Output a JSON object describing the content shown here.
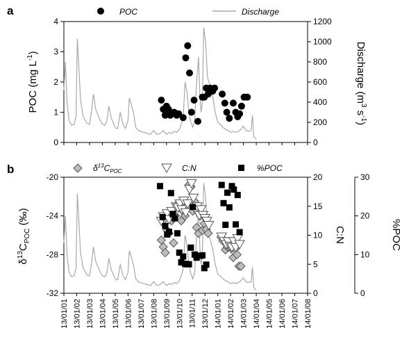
{
  "colors": {
    "discharge": "#a8a8a8",
    "marker_black": "#000000",
    "diamond_fill": "#bdbdbd",
    "triangle_fill": "#ffffff"
  },
  "chart_data": [
    {
      "type": "scatter",
      "panel_label": "a",
      "legend": {
        "poc": "POC",
        "discharge": "Discharge"
      },
      "ylabel_left": "POC (mg L⁻¹)",
      "ylabel_right": "Discharge (m³ s⁻¹)",
      "ylim_left": [
        0,
        4
      ],
      "yticks_left": [
        "0",
        "1",
        "2",
        "3",
        "4"
      ],
      "ylim_right": [
        0,
        1200
      ],
      "yticks_right": [
        "0",
        "200",
        "400",
        "600",
        "800",
        "1000",
        "1200"
      ],
      "xlim": [
        0,
        19
      ],
      "grid": false,
      "series": [
        {
          "name": "POC",
          "marker": "circle",
          "x": [
            7.6,
            7.75,
            7.9,
            8.0,
            8.15,
            8.3,
            8.6,
            8.8,
            8.95,
            9.3,
            9.5,
            9.65,
            9.8,
            9.95,
            10.15,
            10.45,
            10.8,
            10.95,
            11.1,
            11.25,
            11.4,
            11.6,
            11.75,
            12.35,
            12.55,
            12.7,
            12.9,
            13.2,
            13.4,
            13.55,
            13.7,
            13.85,
            14.05,
            14.3
          ],
          "y": [
            1.4,
            1.1,
            0.9,
            1.2,
            1.1,
            0.9,
            1.0,
            0.9,
            0.95,
            0.82,
            2.8,
            3.2,
            2.3,
            1.0,
            1.4,
            0.7,
            1.5,
            1.5,
            1.8,
            1.6,
            1.8,
            1.7,
            1.8,
            1.6,
            1.3,
            1.0,
            0.8,
            1.3,
            1.0,
            0.85,
            0.95,
            1.2,
            1.5,
            1.5
          ]
        },
        {
          "name": "Discharge",
          "axis": "right",
          "x": [
            0,
            0.12,
            0.25,
            0.4,
            0.6,
            0.8,
            0.95,
            1.05,
            1.15,
            1.3,
            1.5,
            1.8,
            2.0,
            2.15,
            2.3,
            2.5,
            2.8,
            3.0,
            3.2,
            3.35,
            3.5,
            3.7,
            3.9,
            4.05,
            4.2,
            4.4,
            4.6,
            4.8,
            5.0,
            5.1,
            5.25,
            5.45,
            5.6,
            5.8,
            6.0,
            6.25,
            6.5,
            6.75,
            7.0,
            7.25,
            7.5,
            7.75,
            8.0,
            8.2,
            8.4,
            8.6,
            8.8,
            9.0,
            9.15,
            9.3,
            9.45,
            9.6,
            9.75,
            9.9,
            10.05,
            10.2,
            10.35,
            10.5,
            10.6,
            10.7,
            10.8,
            10.9,
            11.05,
            11.2,
            11.4,
            11.6,
            11.8,
            12.0,
            12.2,
            12.4,
            12.6,
            12.8,
            13.0,
            13.2,
            13.4,
            13.6,
            13.8,
            14.0,
            14.2,
            14.4,
            14.6,
            14.7,
            14.8,
            15.0
          ],
          "y": [
            520,
            800,
            400,
            220,
            170,
            180,
            260,
            1030,
            800,
            420,
            260,
            190,
            180,
            300,
            480,
            320,
            230,
            180,
            170,
            210,
            360,
            240,
            180,
            140,
            140,
            300,
            180,
            140,
            220,
            440,
            380,
            280,
            150,
            120,
            110,
            100,
            90,
            80,
            120,
            80,
            90,
            120,
            80,
            100,
            90,
            110,
            100,
            130,
            180,
            250,
            600,
            500,
            300,
            200,
            150,
            220,
            600,
            850,
            480,
            300,
            400,
            1140,
            1000,
            650,
            560,
            460,
            300,
            200,
            180,
            150,
            130,
            120,
            100,
            110,
            100,
            110,
            130,
            160,
            120,
            110,
            120,
            270,
            60,
            30
          ]
        }
      ]
    },
    {
      "type": "scatter",
      "panel_label": "b",
      "legend": {
        "d13c": "δ13CPOC",
        "cn": "C:N",
        "pct": "%POC"
      },
      "ylabel_left": "δ13CPOC (‰)",
      "ylabel_right": "C:N",
      "ylabel_right2": "%POC",
      "ylim_left": [
        -32,
        -20
      ],
      "yticks_left": [
        "-32",
        "-28",
        "-24",
        "-20"
      ],
      "ylim_right": [
        0,
        20
      ],
      "yticks_right": [
        "0",
        "5",
        "10",
        "15",
        "20"
      ],
      "ylim_right2": [
        0,
        30
      ],
      "yticks_right2": [
        "0",
        "10",
        "20",
        "30"
      ],
      "x_ticklabels": [
        "13/01/01",
        "13/01/02",
        "13/01/03",
        "13/01/04",
        "13/01/05",
        "13/01/06",
        "13/01/07",
        "13/01/08",
        "13/01/09",
        "13/01/10",
        "13/01/11",
        "13/01/12",
        "14/01/01",
        "14/01/02",
        "14/01/03",
        "14/01/04",
        "14/01/05",
        "14/01/06",
        "14/01/07",
        "14/01/08"
      ],
      "grid": false,
      "series": [
        {
          "name": "δ13CPOC",
          "marker": "diamond",
          "x": [
            7.6,
            7.75,
            7.9,
            8.05,
            8.2,
            8.4,
            8.55,
            8.7,
            8.85,
            9.0,
            9.15,
            9.3,
            9.45,
            9.6,
            9.75,
            9.9,
            10.05,
            10.2,
            10.35,
            10.5,
            10.65,
            10.8,
            10.95,
            11.1,
            11.25,
            12.25,
            12.4,
            12.6,
            12.75,
            12.9,
            13.05,
            13.2,
            13.35,
            13.5,
            13.65,
            13.8
          ],
          "y": [
            -26.5,
            -27.2,
            -27.8,
            -25.5,
            -25.8,
            -24.5,
            -26.8,
            -24.0,
            -22.8,
            -23.0,
            -24.5,
            -23.5,
            -24.0,
            -23.0,
            -20.8,
            -21.0,
            -23.5,
            -22.5,
            -25.2,
            -25.8,
            -24.0,
            -25.5,
            -24.8,
            -25.4,
            -25.8,
            -26.2,
            -26.6,
            -27.5,
            -27.2,
            -26.8,
            -27.4,
            -28.3,
            -27.4,
            -28.0,
            -29.2,
            -29.2
          ]
        },
        {
          "name": "C:N",
          "marker": "triangle-down",
          "x": [
            7.6,
            7.75,
            7.9,
            8.05,
            8.2,
            8.4,
            8.55,
            8.75,
            8.9,
            9.05,
            9.2,
            9.35,
            9.5,
            9.65,
            9.8,
            9.95,
            10.1,
            10.25,
            10.4,
            10.55,
            10.7,
            10.85,
            11.0,
            11.15,
            11.3,
            12.3,
            12.5,
            12.65,
            12.8,
            12.95,
            13.1,
            13.25,
            13.4,
            13.55,
            13.7
          ],
          "y": [
            12.5,
            13.3,
            13.0,
            13.8,
            12.8,
            14.2,
            13.0,
            15.0,
            14.8,
            15.5,
            14.5,
            16.0,
            14.0,
            15.5,
            18.0,
            19.0,
            16.5,
            14.5,
            15.0,
            13.5,
            14.5,
            13.5,
            13.0,
            12.5,
            11.8,
            9.8,
            9.0,
            8.5,
            9.0,
            8.2,
            8.0,
            9.0,
            8.0,
            9.5,
            8.5
          ]
        },
        {
          "name": "%POC",
          "marker": "square",
          "axis": "right2",
          "x": [
            7.5,
            7.7,
            7.9,
            8.05,
            8.2,
            8.35,
            8.5,
            8.65,
            8.85,
            9.0,
            9.15,
            9.3,
            9.45,
            9.6,
            9.75,
            9.9,
            10.05,
            10.2,
            10.35,
            10.5,
            10.65,
            10.8,
            10.95,
            11.1,
            12.3,
            12.45,
            12.6,
            12.75,
            12.9,
            13.1,
            13.25,
            13.4,
            13.55,
            13.7
          ],
          "y": [
            27.7,
            19.7,
            17.4,
            15.2,
            15.9,
            25.9,
            20.5,
            19.4,
            15.5,
            10.5,
            8.0,
            9.5,
            7.6,
            7.5,
            7.5,
            11.8,
            22.3,
            10.0,
            9.2,
            9.7,
            9.7,
            9.8,
            6.5,
            7.4,
            28.0,
            23.3,
            17.7,
            26.0,
            22.2,
            27.7,
            26.8,
            17.8,
            25.4,
            15.8
          ]
        },
        {
          "name": "Discharge",
          "axis": "right",
          "x": [
            0,
            0.12,
            0.25,
            0.4,
            0.6,
            0.8,
            0.95,
            1.05,
            1.15,
            1.3,
            1.5,
            1.8,
            2.0,
            2.15,
            2.3,
            2.5,
            2.8,
            3.0,
            3.2,
            3.35,
            3.5,
            3.7,
            3.9,
            4.05,
            4.2,
            4.4,
            4.6,
            4.8,
            5.0,
            5.1,
            5.25,
            5.45,
            5.6,
            5.8,
            6.0,
            6.25,
            6.5,
            6.75,
            7.0,
            7.25,
            7.5,
            7.75,
            8.0,
            8.2,
            8.4,
            8.6,
            8.8,
            9.0,
            9.15,
            9.3,
            9.45,
            9.6,
            9.75,
            9.9,
            10.05,
            10.2,
            10.35,
            10.5,
            10.6,
            10.7,
            10.8,
            10.9,
            11.05,
            11.2,
            11.4,
            11.6,
            11.8,
            12.0,
            12.2,
            12.4,
            12.6,
            12.8,
            13.0,
            13.2,
            13.4,
            13.6,
            13.8,
            14.0,
            14.2,
            14.4,
            14.6,
            14.7,
            14.8,
            15.0
          ],
          "y": [
            520,
            800,
            400,
            220,
            170,
            180,
            260,
            1030,
            800,
            420,
            260,
            190,
            180,
            300,
            480,
            320,
            230,
            180,
            170,
            210,
            360,
            240,
            180,
            140,
            140,
            300,
            180,
            140,
            220,
            440,
            380,
            280,
            150,
            120,
            110,
            100,
            90,
            80,
            120,
            80,
            90,
            120,
            80,
            100,
            90,
            110,
            100,
            130,
            180,
            250,
            600,
            500,
            300,
            200,
            150,
            220,
            600,
            850,
            480,
            300,
            400,
            1140,
            1000,
            650,
            560,
            460,
            300,
            200,
            180,
            150,
            130,
            120,
            100,
            110,
            100,
            110,
            130,
            160,
            120,
            110,
            120,
            270,
            60,
            30
          ]
        }
      ]
    }
  ]
}
